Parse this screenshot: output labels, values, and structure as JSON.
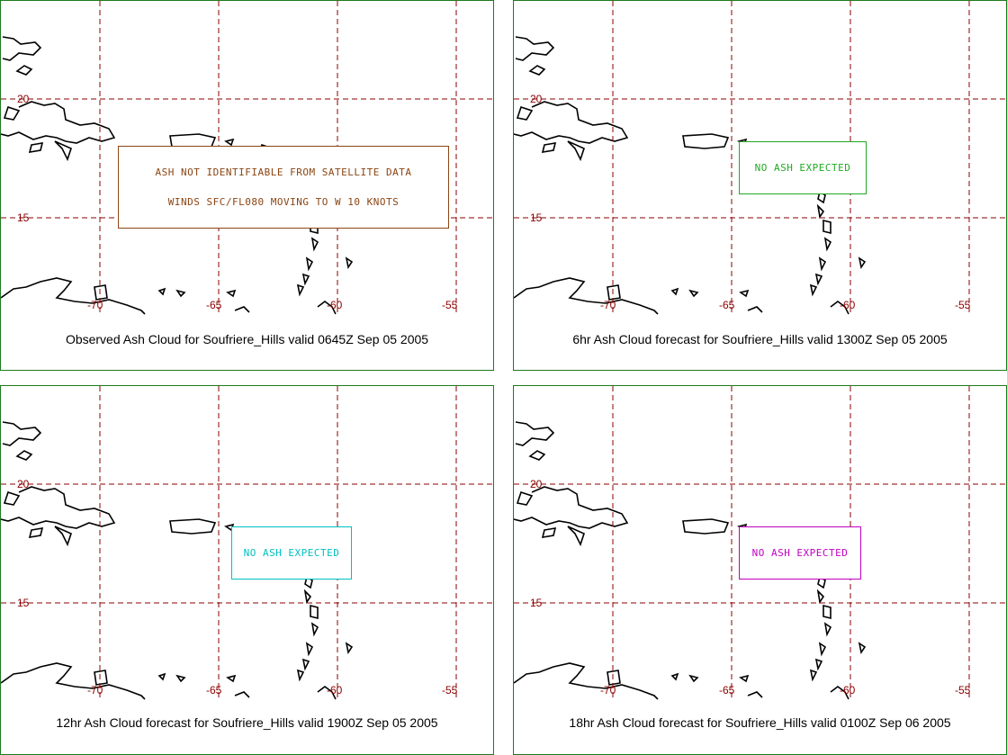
{
  "panels": [
    {
      "caption": "Observed Ash Cloud for Soufriere_Hills valid 0645Z Sep 05 2005",
      "label_lines": [
        "ASH NOT IDENTIFIABLE FROM SATELLITE DATA",
        "WINDS SFC/FL080 MOVING TO W 10 KNOTS"
      ],
      "label_color": "#8b4513"
    },
    {
      "caption": "6hr Ash Cloud forecast for Soufriere_Hills valid 1300Z Sep 05 2005",
      "label_lines": [
        "NO ASH EXPECTED"
      ],
      "label_color": "#22aa22"
    },
    {
      "caption": "12hr Ash Cloud forecast for Soufriere_Hills valid 1900Z Sep 05 2005",
      "label_lines": [
        "NO ASH EXPECTED"
      ],
      "label_color": "#00c0c0"
    },
    {
      "caption": "18hr Ash Cloud forecast for Soufriere_Hills valid 0100Z Sep 06 2005",
      "label_lines": [
        "NO ASH EXPECTED"
      ],
      "label_color": "#c000c0"
    }
  ],
  "axes": {
    "lat_ticks": [
      "20",
      "15"
    ],
    "lon_ticks": [
      "-70",
      "-65",
      "-60",
      "-55"
    ]
  },
  "colors": {
    "grid": "#8b0000",
    "border": "#1f7a1f",
    "volcano": "#00c0c0",
    "coast": "#000000"
  },
  "icons": {
    "volcano": "volcano-triangle-icon"
  }
}
